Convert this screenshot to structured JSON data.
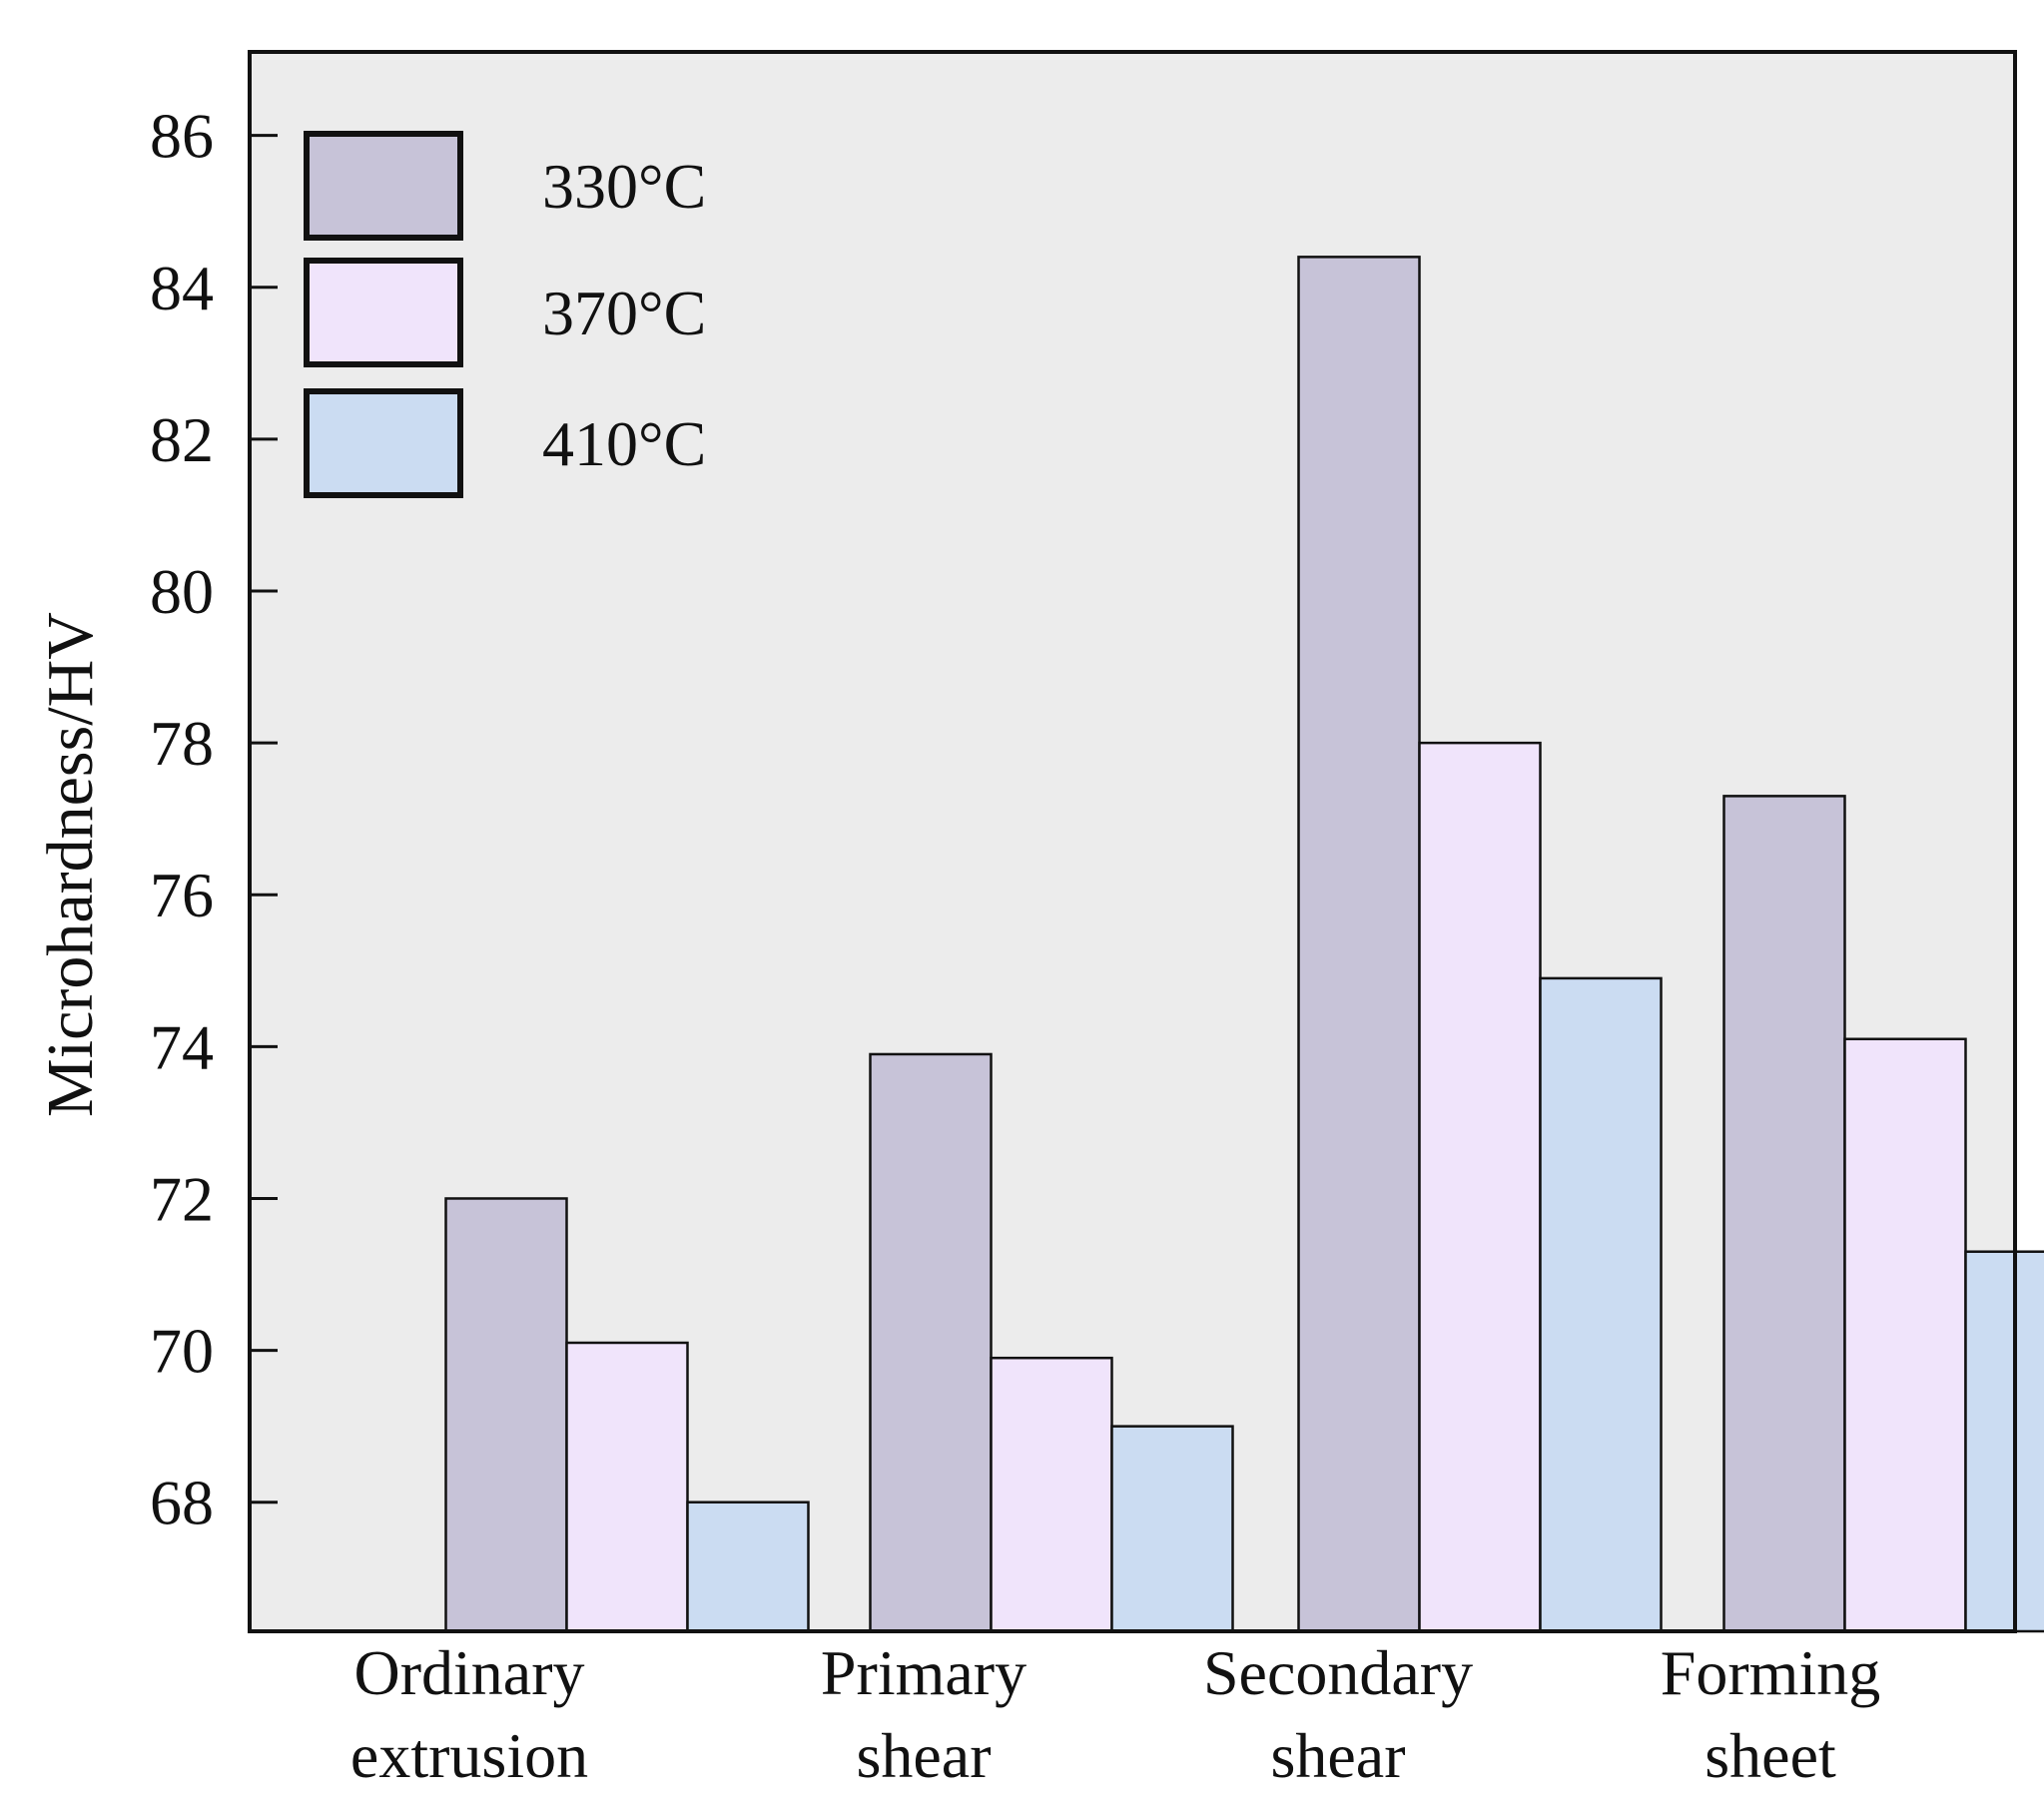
{
  "chart_data": {
    "type": "bar",
    "title": "",
    "xlabel": "",
    "ylabel": "Microhardness/HV",
    "ylim": [
      66.3,
      87.1
    ],
    "yticks": [
      68,
      70,
      72,
      74,
      76,
      78,
      80,
      82,
      84,
      86
    ],
    "grid": false,
    "legend_position": "top-left",
    "categories": [
      [
        "Ordinary",
        "extrusion"
      ],
      [
        "Primary",
        "shear"
      ],
      [
        "Secondary",
        "shear"
      ],
      [
        "Forming",
        "sheet"
      ]
    ],
    "series": [
      {
        "name": "330°C",
        "color": "#c7c3d8",
        "values": [
          72.0,
          73.9,
          84.4,
          77.3
        ]
      },
      {
        "name": "370°C",
        "color": "#f0e4fb",
        "values": [
          70.1,
          69.9,
          78.0,
          74.1
        ]
      },
      {
        "name": "410°C",
        "color": "#cbdcf2",
        "values": [
          68.0,
          69.0,
          74.9,
          71.3
        ]
      }
    ],
    "plot_background": "#ececec",
    "axis_color": "#111111"
  }
}
